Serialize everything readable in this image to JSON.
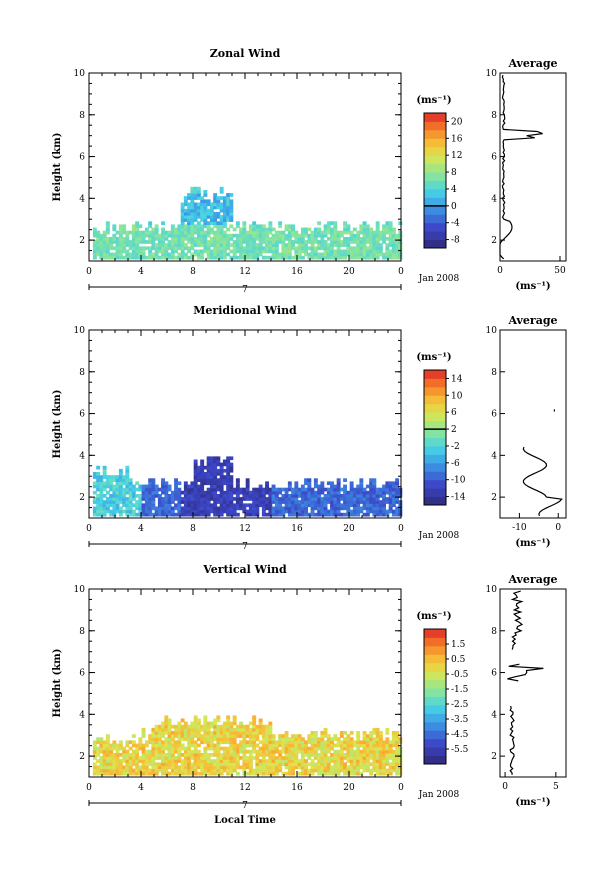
{
  "chart_data": [
    {
      "type": "heatmap",
      "title": "Zonal Wind",
      "ylabel": "Height (km)",
      "xlabel": "",
      "ylim": [
        1,
        10
      ],
      "xlim": [
        0,
        24
      ],
      "x_ticks": [
        "0",
        "4",
        "8",
        "12",
        "16",
        "20",
        "0"
      ],
      "y_ticks": [
        "2",
        "4",
        "6",
        "8",
        "10"
      ],
      "day_label": "7",
      "date_label": "Jan 2008",
      "colorbar": {
        "unit": "(ms⁻¹)",
        "ticks": [
          "-8",
          "-4",
          "0",
          "4",
          "8",
          "12",
          "16",
          "20"
        ],
        "range": [
          -10,
          22
        ],
        "contour_level": 0
      },
      "average_panel": {
        "title": "Average",
        "x_ticks": [
          "0",
          "50"
        ],
        "xlim": [
          0,
          55
        ],
        "y_ticks": [
          "2",
          "4",
          "6",
          "8",
          "10"
        ],
        "xlabel": "(ms⁻¹)"
      }
    },
    {
      "type": "heatmap",
      "title": "Meridional Wind",
      "ylabel": "Height (km)",
      "xlabel": "",
      "ylim": [
        1,
        10
      ],
      "xlim": [
        0,
        24
      ],
      "x_ticks": [
        "0",
        "4",
        "8",
        "12",
        "16",
        "20",
        "0"
      ],
      "y_ticks": [
        "2",
        "4",
        "6",
        "8",
        "10"
      ],
      "day_label": "7",
      "date_label": "Jan 2008",
      "colorbar": {
        "unit": "(ms⁻¹)",
        "ticks": [
          "-14",
          "-10",
          "-6",
          "-2",
          "2",
          "6",
          "10",
          "14"
        ],
        "range": [
          -16,
          16
        ],
        "contour_level": 2
      },
      "average_panel": {
        "title": "Average",
        "x_ticks": [
          "-10",
          "0"
        ],
        "xlim": [
          -15,
          2
        ],
        "y_ticks": [
          "2",
          "4",
          "6",
          "8",
          "10"
        ],
        "xlabel": "(ms⁻¹)"
      }
    },
    {
      "type": "heatmap",
      "title": "Vertical Wind",
      "ylabel": "Height (km)",
      "xlabel": "Local Time",
      "ylim": [
        1,
        10
      ],
      "xlim": [
        0,
        24
      ],
      "x_ticks": [
        "0",
        "4",
        "8",
        "12",
        "16",
        "20",
        "0"
      ],
      "y_ticks": [
        "2",
        "4",
        "6",
        "8",
        "10"
      ],
      "day_label": "7",
      "date_label": "Jan 2008",
      "colorbar": {
        "unit": "(ms⁻¹)",
        "ticks": [
          "-5.5",
          "-4.5",
          "-3.5",
          "-2.5",
          "-1.5",
          "-0.5",
          "0.5",
          "1.5"
        ],
        "range": [
          -6.5,
          2.5
        ],
        "contour_level": null
      },
      "average_panel": {
        "title": "Average",
        "x_ticks": [
          "0",
          "5"
        ],
        "xlim": [
          -0.5,
          6
        ],
        "y_ticks": [
          "2",
          "4",
          "6",
          "8",
          "10"
        ],
        "xlabel": "(ms⁻¹)"
      }
    }
  ]
}
